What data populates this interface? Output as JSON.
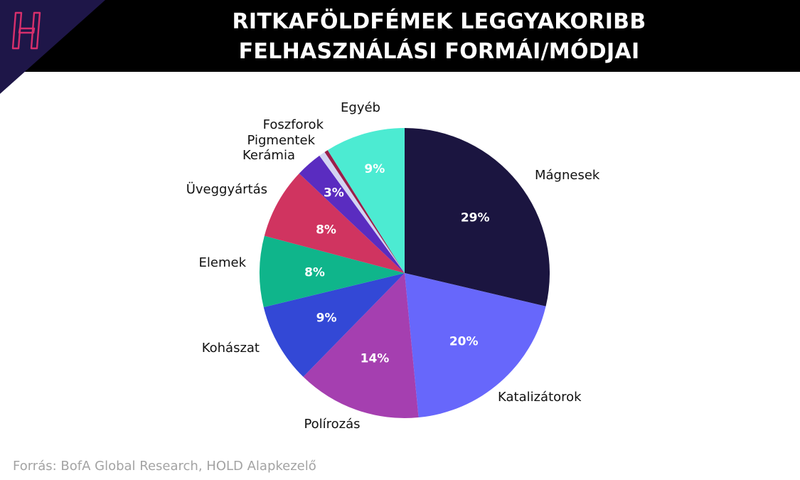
{
  "header": {
    "title_line1": "RITKAFÖLDFÉMEK LEGGYAKORIBB",
    "title_line2": "FELHASZNÁLÁSI FORMÁI/MÓDJAI"
  },
  "source": "Forrás: BofA Global Research, HOLD Alapkezelő",
  "colors": {
    "header_bg": "#000000",
    "corner_triangle": "#1e1648",
    "logo_accent": "#d72f6c"
  },
  "chart_data": {
    "type": "pie",
    "title": "RITKAFÖLDFÉMEK LEGGYAKORIBB FELHASZNÁLÁSI FORMÁI/MÓDJAI",
    "start": "12 o'clock",
    "direction": "clockwise",
    "slices": [
      {
        "label": "Mágnesek",
        "value": 29,
        "value_label": "29%",
        "color": "#1b1540"
      },
      {
        "label": "Katalizátorok",
        "value": 20,
        "value_label": "20%",
        "color": "#6767fb"
      },
      {
        "label": "Polírozás",
        "value": 14,
        "value_label": "14%",
        "color": "#a53fb0"
      },
      {
        "label": "Kohászat",
        "value": 9,
        "value_label": "9%",
        "color": "#3348d6"
      },
      {
        "label": "Elemek",
        "value": 8,
        "value_label": "8%",
        "color": "#0fb58b"
      },
      {
        "label": "Üveggyártás",
        "value": 8,
        "value_label": "8%",
        "color": "#d03460"
      },
      {
        "label": "Kerámia",
        "value": 3,
        "value_label": "3%",
        "color": "#5a2cc0"
      },
      {
        "label": "Pigmentek",
        "value": 0.7,
        "value_label": "",
        "color": "#d4d4f2"
      },
      {
        "label": "Foszforok",
        "value": 0.4,
        "value_label": "",
        "color": "#9a1f4a"
      },
      {
        "label": "Egyéb",
        "value": 9,
        "value_label": "9%",
        "color": "#4cebd2"
      }
    ]
  }
}
